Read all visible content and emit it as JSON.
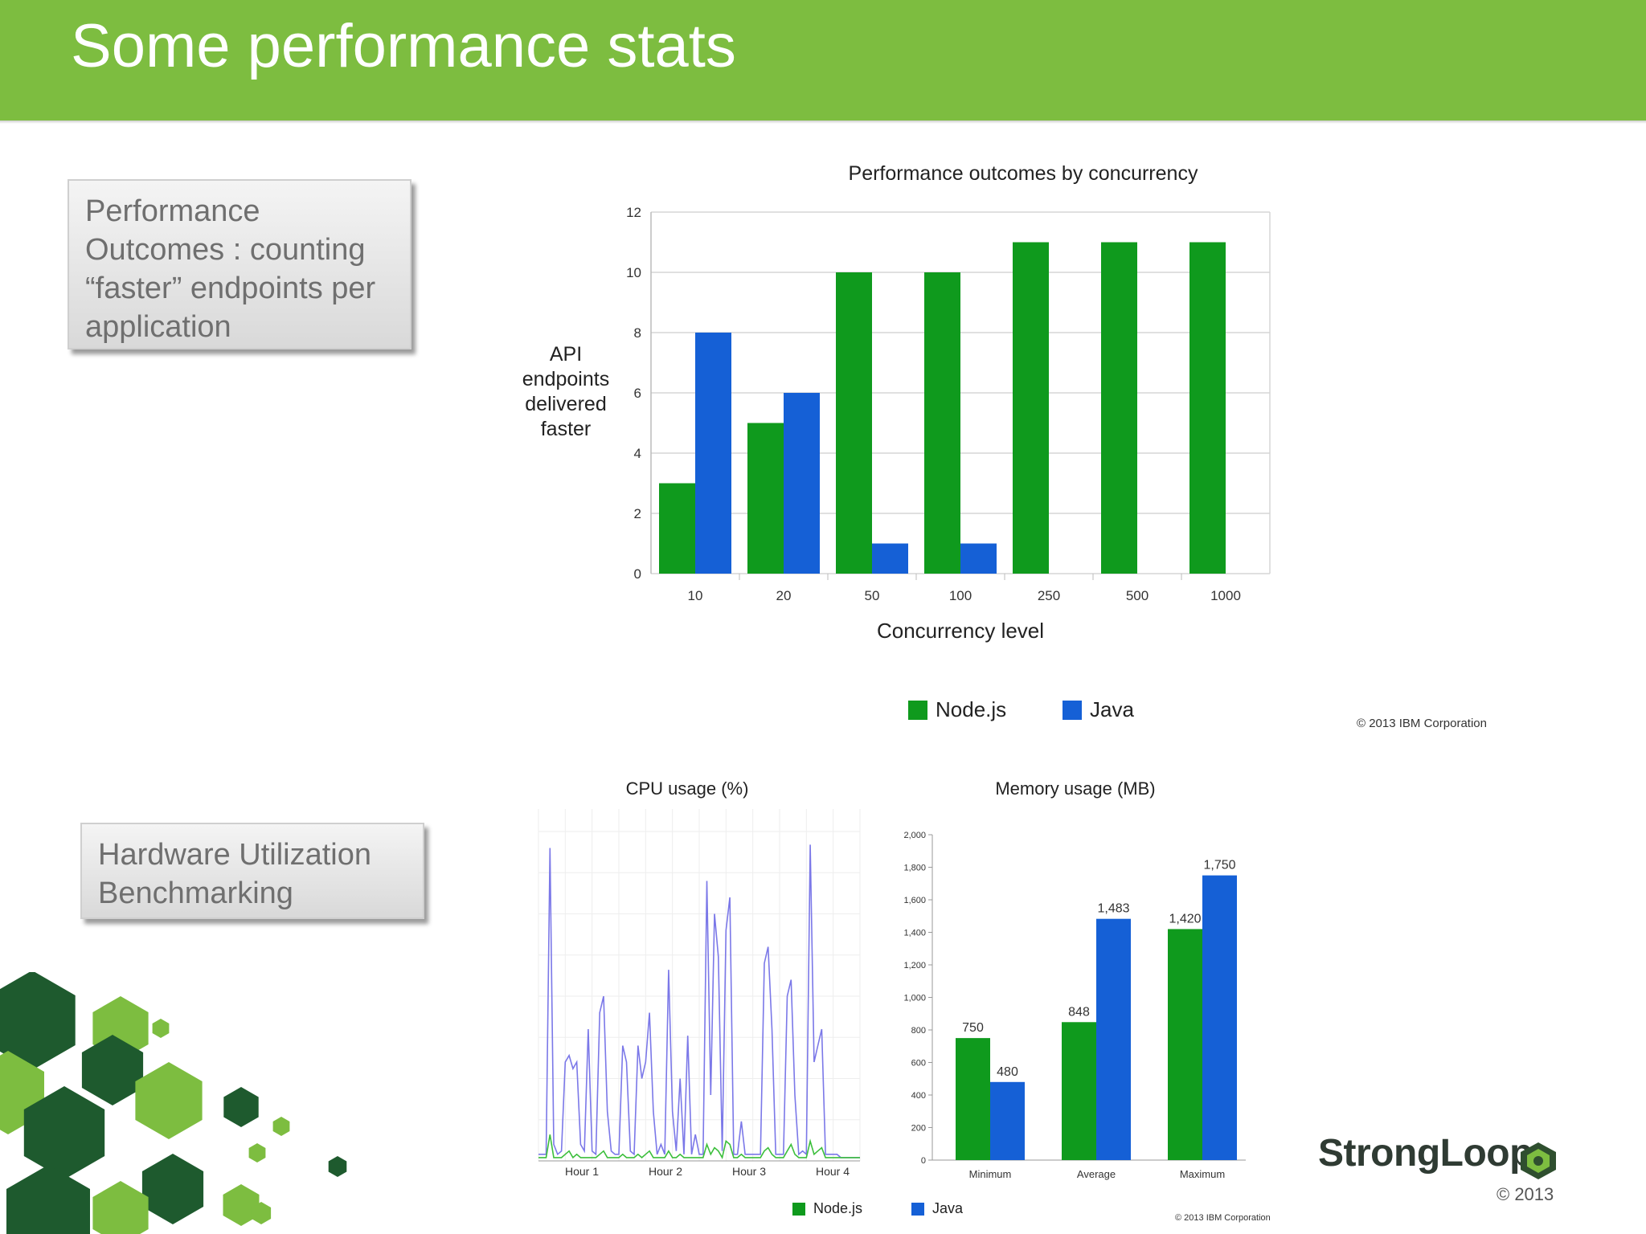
{
  "slide": {
    "title": "Some performance stats",
    "callouts": [
      {
        "lines": [
          "Performance",
          "Outcomes : counting",
          "“faster” endpoints per",
          "application"
        ]
      },
      {
        "lines": [
          "Hardware Utilization",
          "Benchmarking"
        ]
      }
    ],
    "brand": {
      "name": "StrongLoop",
      "year": "© 2013"
    },
    "colors": {
      "header": "#7dbd40",
      "nodejs": "#0f9a1d",
      "java": "#1560d6",
      "cpu_java": "#7b78e8",
      "cpu_node": "#3cbf3c"
    }
  },
  "chart_data": [
    {
      "type": "bar",
      "title": "Performance outcomes by concurrency",
      "xlabel": "Concurrency level",
      "ylabel": "API endpoints delivered faster",
      "ylim": [
        0,
        12
      ],
      "yticks": [
        "0",
        "2",
        "4",
        "6",
        "8",
        "10",
        "12"
      ],
      "categories": [
        "10",
        "20",
        "50",
        "100",
        "250",
        "500",
        "1000"
      ],
      "series": [
        {
          "name": "Node.js",
          "values": [
            3,
            5,
            10,
            10,
            11,
            11,
            11
          ]
        },
        {
          "name": "Java",
          "values": [
            8,
            6,
            1,
            1,
            0,
            0,
            0
          ]
        }
      ],
      "grid": true,
      "legend": "bottom",
      "footnote": "© 2013 IBM Corporation"
    },
    {
      "type": "line",
      "title": "CPU usage (%)",
      "xticks": [
        "Hour 1",
        "Hour 2",
        "Hour 3",
        "Hour 4"
      ],
      "ylim": [
        0,
        100
      ],
      "series": [
        {
          "name": "Java",
          "values": [
            2,
            2,
            2,
            95,
            5,
            2,
            3,
            30,
            32,
            28,
            30,
            5,
            3,
            40,
            3,
            2,
            45,
            50,
            15,
            3,
            2,
            2,
            35,
            30,
            3,
            2,
            35,
            25,
            30,
            45,
            15,
            2,
            5,
            2,
            58,
            15,
            3,
            25,
            2,
            38,
            2,
            8,
            2,
            2,
            85,
            20,
            75,
            62,
            3,
            70,
            80,
            2,
            2,
            12,
            2,
            2,
            2,
            2,
            2,
            60,
            65,
            40,
            2,
            2,
            2,
            50,
            55,
            20,
            2,
            3,
            2,
            96,
            30,
            35,
            40,
            2,
            2,
            2,
            2,
            1,
            1,
            1,
            1,
            1,
            1
          ]
        },
        {
          "name": "Node.js",
          "values": [
            1,
            1,
            1,
            8,
            1,
            1,
            1,
            2,
            3,
            1,
            2,
            1,
            1,
            1,
            1,
            1,
            2,
            3,
            1,
            1,
            1,
            1,
            2,
            1,
            1,
            1,
            2,
            1,
            2,
            3,
            1,
            1,
            1,
            1,
            3,
            1,
            1,
            2,
            1,
            1,
            1,
            1,
            1,
            1,
            5,
            2,
            4,
            3,
            1,
            6,
            5,
            1,
            1,
            2,
            1,
            1,
            1,
            1,
            1,
            3,
            4,
            2,
            1,
            1,
            1,
            3,
            5,
            2,
            1,
            1,
            1,
            6,
            2,
            3,
            4,
            1,
            1,
            1,
            1,
            1,
            1,
            1,
            1,
            1,
            1
          ]
        }
      ],
      "legend": "bottom"
    },
    {
      "type": "bar",
      "title": "Memory usage (MB)",
      "categories": [
        "Minimum",
        "Average",
        "Maximum"
      ],
      "ylim": [
        0,
        2000
      ],
      "yticks": [
        "0",
        "200",
        "400",
        "600",
        "800",
        "1,000",
        "1,200",
        "1,400",
        "1,600",
        "1,800",
        "2,000"
      ],
      "series": [
        {
          "name": "Node.js",
          "values": [
            750,
            848,
            1420
          ],
          "labels": [
            "750",
            "848",
            "1,420"
          ]
        },
        {
          "name": "Java",
          "values": [
            480,
            1483,
            1750
          ],
          "labels": [
            "480",
            "1,483",
            "1,750"
          ]
        }
      ],
      "legend": "bottom",
      "footnote": "© 2013 IBM Corporation"
    }
  ]
}
